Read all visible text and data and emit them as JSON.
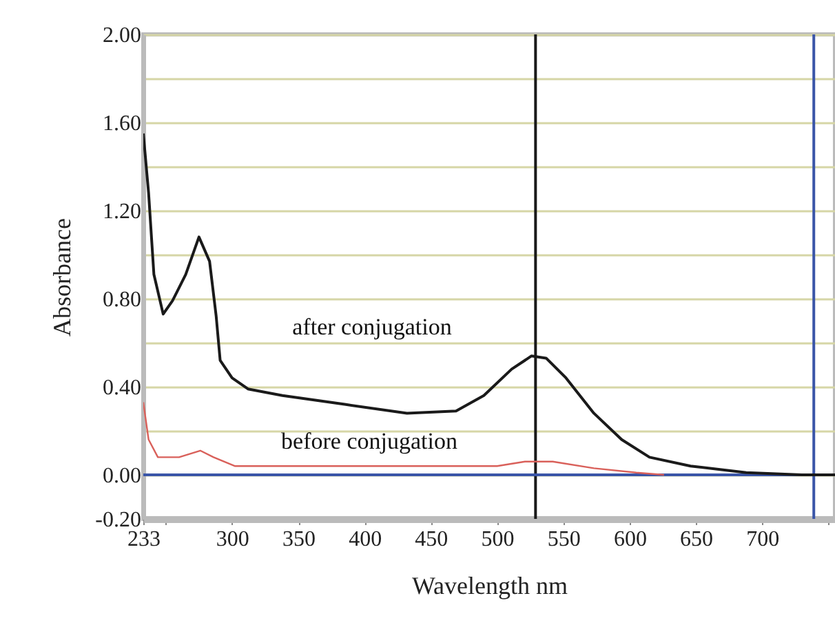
{
  "chart_data": {
    "type": "line",
    "xlabel": "Wavelength nm",
    "ylabel": "Absorbance",
    "xlim": [
      233,
      755
    ],
    "ylim": [
      -0.2,
      2.0
    ],
    "xticks": [
      233,
      {
        "value": 250,
        "label": null
      },
      300,
      350,
      400,
      450,
      500,
      550,
      600,
      650,
      700,
      {
        "value": 750,
        "label": null
      }
    ],
    "yticks": [
      {
        "value": -0.2,
        "label": "-0.20"
      },
      {
        "value": 0,
        "label": "0.00"
      },
      {
        "value": 0.2,
        "label": null
      },
      {
        "value": 0.4,
        "label": "0.40"
      },
      {
        "value": 0.6,
        "label": null
      },
      {
        "value": 0.8,
        "label": "0.80"
      },
      {
        "value": 1.0,
        "label": null
      },
      {
        "value": 1.2,
        "label": "1.20"
      },
      {
        "value": 1.4,
        "label": null
      },
      {
        "value": 1.6,
        "label": "1.60"
      },
      {
        "value": 1.8,
        "label": null
      },
      {
        "value": 2.0,
        "label": "2.00"
      }
    ],
    "grid": "y",
    "marker": "none",
    "line_style": "solid",
    "series": [
      {
        "name": "after conjugation",
        "color": "#1a1a1a",
        "x": [
          233,
          237,
          241,
          248,
          255,
          265,
          275,
          283,
          288,
          291,
          300,
          312,
          338,
          385,
          432,
          469,
          490,
          511,
          526,
          537,
          552,
          573,
          594,
          615,
          646,
          688,
          730,
          755
        ],
        "values": [
          1.55,
          1.28,
          0.91,
          0.73,
          0.79,
          0.91,
          1.08,
          0.97,
          0.72,
          0.52,
          0.44,
          0.39,
          0.36,
          0.32,
          0.28,
          0.29,
          0.36,
          0.48,
          0.54,
          0.53,
          0.44,
          0.28,
          0.16,
          0.08,
          0.04,
          0.01,
          0.0,
          0.0
        ]
      },
      {
        "name": "before conjugation",
        "color": "#d9605a",
        "x": [
          233,
          237,
          244,
          260,
          276,
          286,
          302,
          354,
          438,
          500,
          521,
          542,
          573,
          605,
          626
        ],
        "values": [
          0.33,
          0.16,
          0.08,
          0.08,
          0.11,
          0.08,
          0.04,
          0.04,
          0.04,
          0.04,
          0.06,
          0.06,
          0.03,
          0.01,
          0.0
        ]
      }
    ],
    "ref_lines": [
      {
        "axis": "x",
        "value": 529,
        "color": "#1a1a1a"
      },
      {
        "axis": "x",
        "value": 739,
        "color": "#3a55a8"
      },
      {
        "axis": "y",
        "value": 0,
        "color": "#3a55a8"
      }
    ]
  }
}
